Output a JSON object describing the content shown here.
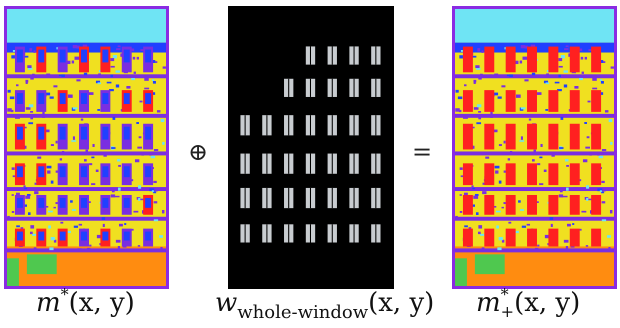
{
  "panels": {
    "left": {
      "label_base": "m",
      "label_sup": "*",
      "label_args": "(x, y)"
    },
    "middle": {
      "label_base": "w",
      "label_sub": "whole-window",
      "label_args": "(x, y)"
    },
    "right": {
      "label_base": "m",
      "label_sup": "*",
      "label_sub": "+",
      "label_args": "(x, y)"
    }
  },
  "operators": {
    "plus": "⊕",
    "equals": "="
  },
  "colors": {
    "border": "#8a2be2",
    "wall": "#f0e020",
    "window": "#ff2020",
    "violet": "#7a2ee0",
    "blue": "#2040ff",
    "sky": "#6fe4f4",
    "orange": "#ff8c10",
    "green": "#4fc84f",
    "mask_bg": "#000000",
    "mask_window": "#c8ccd0"
  }
}
